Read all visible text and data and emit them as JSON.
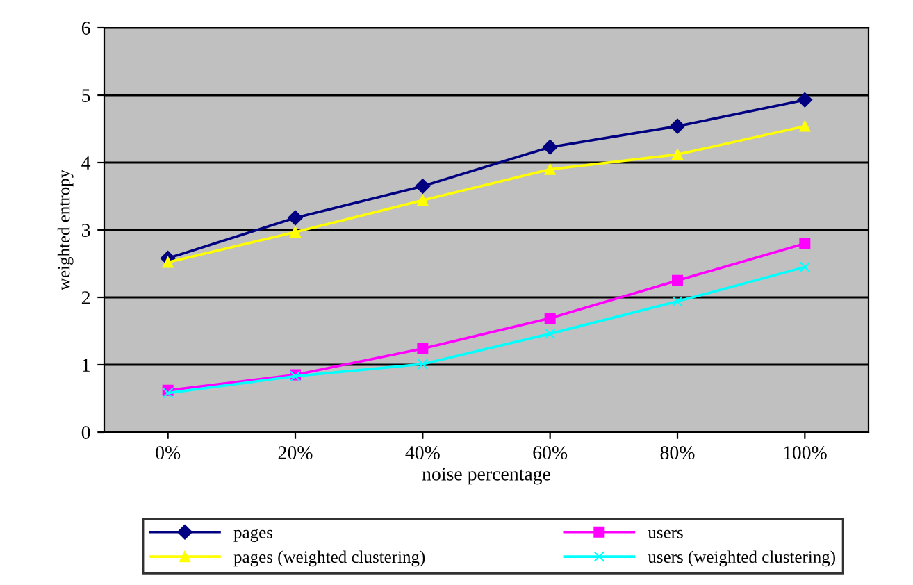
{
  "chart_data": {
    "type": "line",
    "xlabel": "noise percentage",
    "ylabel": "weighted entropy",
    "categories": [
      "0%",
      "20%",
      "40%",
      "60%",
      "80%",
      "100%"
    ],
    "series": [
      {
        "name": "pages",
        "color": "#000080",
        "marker": "diamond",
        "values": [
          2.58,
          3.18,
          3.65,
          4.23,
          4.54,
          4.93
        ]
      },
      {
        "name": "pages (weighted clustering)",
        "color": "#ffff00",
        "marker": "triangle",
        "values": [
          2.52,
          2.97,
          3.44,
          3.9,
          4.12,
          4.54
        ]
      },
      {
        "name": "users",
        "color": "#ff00ff",
        "marker": "square",
        "values": [
          0.62,
          0.85,
          1.24,
          1.69,
          2.25,
          2.8
        ]
      },
      {
        "name": "users (weighted clustering)",
        "color": "#00ffff",
        "marker": "cross",
        "values": [
          0.58,
          0.83,
          1.01,
          1.46,
          1.94,
          2.45
        ]
      }
    ],
    "ylim": [
      0,
      6
    ],
    "yticks": [
      0,
      1,
      2,
      3,
      4,
      5,
      6
    ],
    "grid": "y",
    "legend": "bottom"
  }
}
